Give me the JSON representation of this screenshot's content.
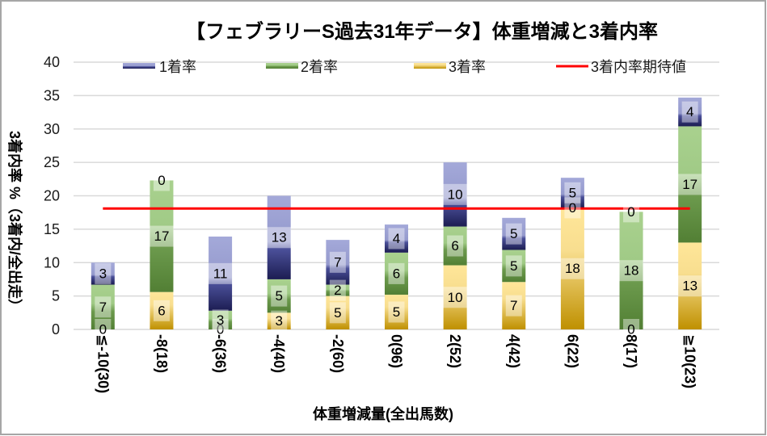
{
  "chart_data": {
    "type": "bar",
    "stacked": true,
    "title": "【フェブラリーS過去31年データ】体重増減と3着内率",
    "xlabel": "体重増減量(全出馬数)",
    "ylabel": "3着内率 %（3着内/全出走）",
    "ylim": [
      0,
      40
    ],
    "yticks": [
      "0",
      "5",
      "10",
      "15",
      "20",
      "25",
      "30",
      "35",
      "40"
    ],
    "grid": true,
    "legend_position": "top",
    "categories": [
      "≦-10(30)",
      "-8(18)",
      "-6(36)",
      "-4(40)",
      "-2(60)",
      "0(96)",
      "2(52)",
      "4(42)",
      "6(22)",
      "8(17)",
      "≧10(23)"
    ],
    "series": [
      {
        "name": "1着率",
        "color": "#2e3280",
        "values": [
          3.3,
          0,
          11.1,
          12.5,
          6.7,
          4.2,
          9.6,
          4.8,
          4.5,
          0,
          4.3
        ],
        "data_labels": [
          "3",
          "0",
          "11",
          "13",
          "7",
          "4",
          "10",
          "5",
          "5",
          "0",
          "4"
        ]
      },
      {
        "name": "2着率",
        "color": "#70ad47",
        "values": [
          6.7,
          16.7,
          2.8,
          5.0,
          1.7,
          6.3,
          5.8,
          4.8,
          0,
          17.6,
          17.4
        ],
        "data_labels": [
          "7",
          "17",
          "3",
          "5",
          "2",
          "6",
          "6",
          "5",
          "0",
          "18",
          "17"
        ]
      },
      {
        "name": "3着率",
        "color": "#e0b84a",
        "values": [
          0,
          5.6,
          0,
          2.5,
          5.0,
          5.2,
          9.6,
          7.1,
          18.2,
          0,
          13.0
        ],
        "data_labels": [
          "0",
          "6",
          "0",
          "3",
          "5",
          "5",
          "10",
          "7",
          "18",
          "0",
          "13"
        ]
      }
    ],
    "reference_line": {
      "name": "3着内率期待値",
      "value": 18.1,
      "color": "#ff0000"
    }
  }
}
